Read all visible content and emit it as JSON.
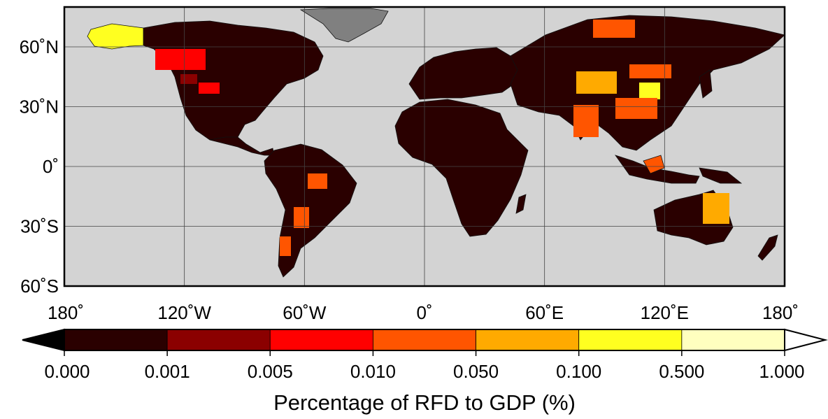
{
  "map": {
    "projection": "equirectangular",
    "lat_range": [
      -60,
      80
    ],
    "lon_range": [
      -180,
      180
    ],
    "ocean_color": "#d3d3d3",
    "no_data_color": "#808080",
    "y_ticks": [
      {
        "lat": 60,
        "label": "60˚N"
      },
      {
        "lat": 30,
        "label": "30˚N"
      },
      {
        "lat": 0,
        "label": "0˚"
      },
      {
        "lat": -30,
        "label": "30˚S"
      },
      {
        "lat": -60,
        "label": "60˚S"
      }
    ],
    "x_ticks": [
      {
        "lon": -180,
        "label": "180˚"
      },
      {
        "lon": -120,
        "label": "120˚W"
      },
      {
        "lon": -60,
        "label": "60˚W"
      },
      {
        "lon": 0,
        "label": "0˚"
      },
      {
        "lon": 60,
        "label": "60˚E"
      },
      {
        "lon": 120,
        "label": "120˚E"
      },
      {
        "lon": 180,
        "label": "180˚"
      }
    ]
  },
  "colorbar": {
    "label": "Percentage of RFD to GDP (%)",
    "ticks": [
      "0.000",
      "0.001",
      "0.005",
      "0.010",
      "0.050",
      "0.100",
      "0.500",
      "1.000"
    ],
    "colors": [
      "#2a0000",
      "#8b0000",
      "#ff0000",
      "#ff5500",
      "#ffaa00",
      "#ffff20",
      "#ffffbf"
    ],
    "under_color": "#000000",
    "over_color": "#ffffff"
  }
}
